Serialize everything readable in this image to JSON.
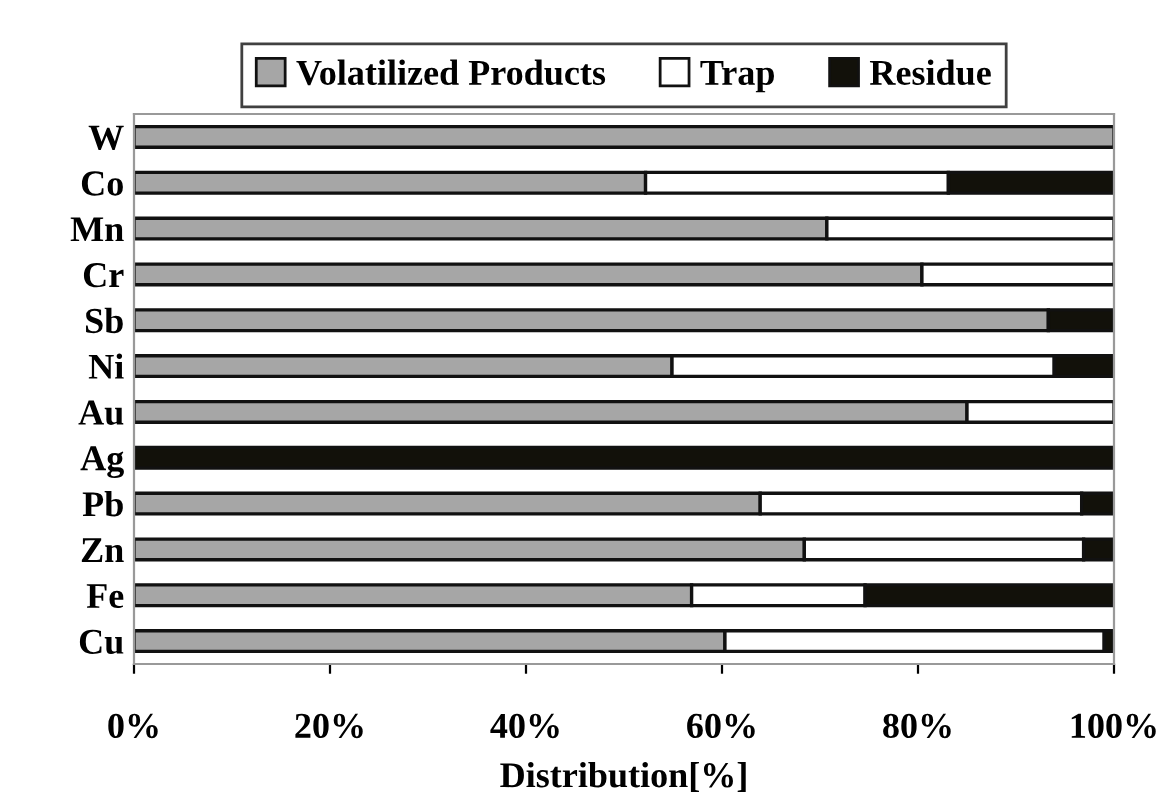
{
  "chart_data": {
    "type": "bar",
    "orientation": "horizontal",
    "stacked": true,
    "xlabel": "Distribution[%]",
    "categories": [
      "W",
      "Co",
      "Mn",
      "Cr",
      "Sb",
      "Ni",
      "Au",
      "Ag",
      "Pb",
      "Zn",
      "Fe",
      "Cu"
    ],
    "series": [
      {
        "name": "Volatilized Products",
        "color": "#a6a6a6",
        "values": [
          100,
          52.2,
          70.7,
          80.4,
          93.3,
          54.9,
          85.0,
          null,
          63.9,
          68.4,
          56.9,
          60.3
        ]
      },
      {
        "name": "Trap",
        "color": "#ffffff",
        "values": [
          null,
          30.9,
          29.3,
          19.6,
          null,
          39.0,
          15.0,
          null,
          32.8,
          28.5,
          17.7,
          38.7
        ]
      },
      {
        "name": "Residue",
        "color": "#12110a",
        "values": [
          null,
          16.9,
          null,
          null,
          6.7,
          6.1,
          null,
          100,
          3.3,
          3.1,
          25.4,
          1.0
        ]
      }
    ],
    "xlim": [
      0,
      100
    ],
    "xticks": [
      {
        "value": 0,
        "label": "0%"
      },
      {
        "value": 20,
        "label": "20%"
      },
      {
        "value": 40,
        "label": "40%"
      },
      {
        "value": 60,
        "label": "60%"
      },
      {
        "value": 80,
        "label": "80%"
      },
      {
        "value": 100,
        "label": "100%"
      }
    ],
    "grid": false,
    "legend": "top"
  }
}
